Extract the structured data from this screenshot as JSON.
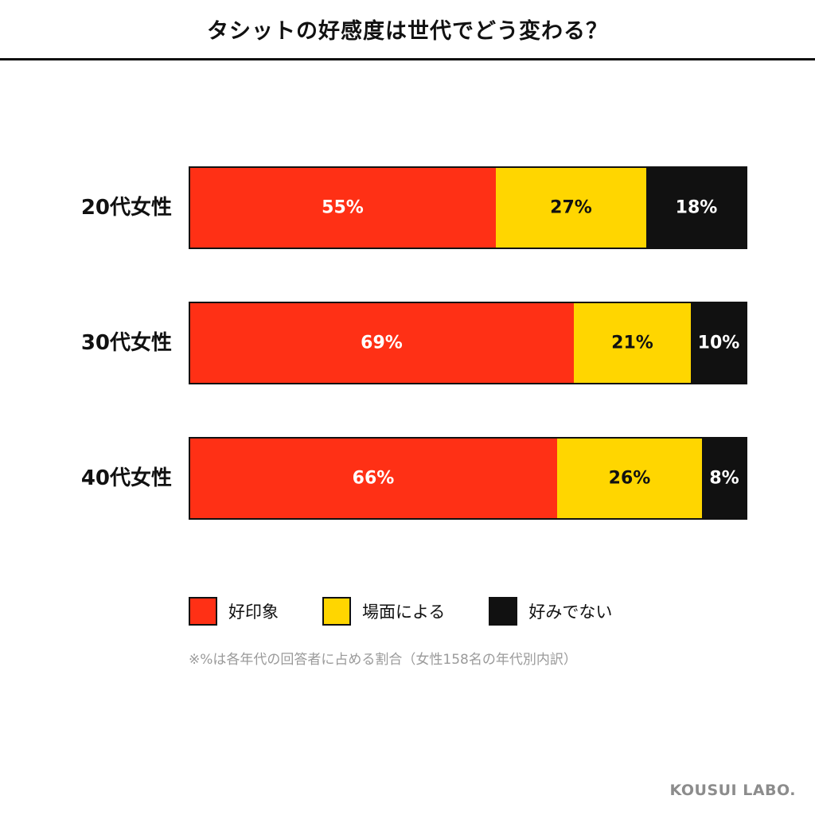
{
  "header": {
    "title": "タシットの好感度は世代でどう変わる？"
  },
  "chart_data": {
    "type": "bar",
    "orientation": "horizontal",
    "stacked": true,
    "xlim": [
      0,
      100
    ],
    "unit": "%",
    "grid": false,
    "legend_position": "bottom-left",
    "categories": [
      "20代女性",
      "30代女性",
      "40代女性"
    ],
    "series": [
      {
        "name": "好印象",
        "color": "#ff3015",
        "label_color": "#ffffff",
        "values": [
          55,
          69,
          66
        ]
      },
      {
        "name": "場面による",
        "color": "#ffd600",
        "label_color": "#111111",
        "values": [
          27,
          21,
          26
        ]
      },
      {
        "name": "好みでない",
        "color": "#111111",
        "label_color": "#ffffff",
        "values": [
          18,
          10,
          8
        ]
      }
    ],
    "data_labels": [
      [
        "55%",
        "27%",
        "18%"
      ],
      [
        "69%",
        "21%",
        "10%"
      ],
      [
        "66%",
        "26%",
        "8%"
      ]
    ]
  },
  "legend": {
    "items": [
      {
        "label": "好印象",
        "color": "#ff3015"
      },
      {
        "label": "場面による",
        "color": "#ffd600"
      },
      {
        "label": "好みでない",
        "color": "#111111"
      }
    ]
  },
  "note": "※%は各年代の回答者に占める割合（女性158名の年代別内訳）",
  "brand": "KOUSUI LABO."
}
